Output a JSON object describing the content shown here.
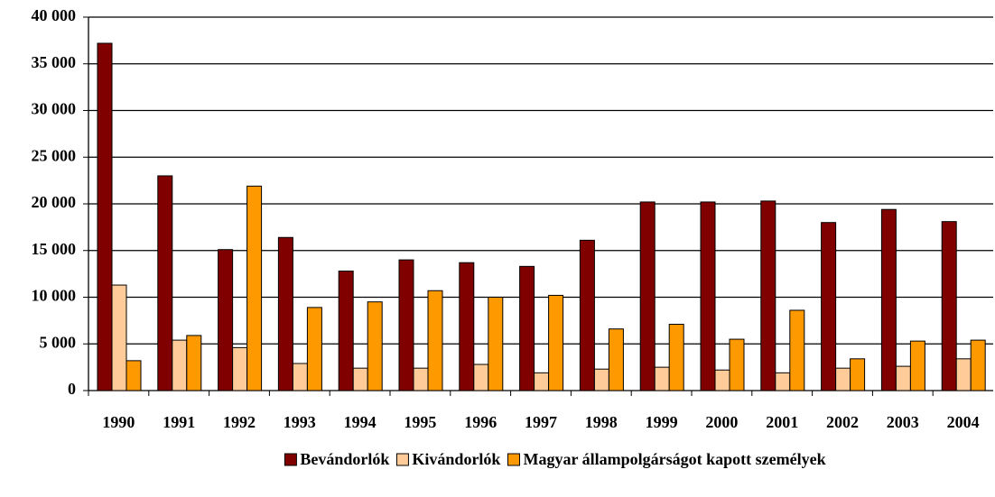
{
  "chart_data": {
    "type": "bar",
    "categories": [
      "1990",
      "1991",
      "1992",
      "1993",
      "1994",
      "1995",
      "1996",
      "1997",
      "1998",
      "1999",
      "2000",
      "2001",
      "2002",
      "2003",
      "2004"
    ],
    "series": [
      {
        "name": "Bevándorlók",
        "color": "#800000",
        "values": [
          37200,
          23000,
          15100,
          16400,
          12800,
          14000,
          13700,
          13300,
          16100,
          20200,
          20200,
          20300,
          18000,
          19400,
          18100
        ]
      },
      {
        "name": "Kivándorlók",
        "color": "#ffcc99",
        "values": [
          11300,
          5400,
          4600,
          2900,
          2400,
          2400,
          2800,
          1900,
          2300,
          2500,
          2200,
          1900,
          2400,
          2600,
          3400
        ]
      },
      {
        "name": "Magyar állampolgárságot kapott személyek",
        "color": "#ff9900",
        "values": [
          3200,
          5900,
          21900,
          8900,
          9500,
          10700,
          10000,
          10200,
          6600,
          7100,
          5500,
          8600,
          3400,
          5300,
          5400
        ]
      }
    ],
    "ylim": [
      0,
      40000
    ],
    "yticks": [
      0,
      {
        "value": 5000,
        "label": "5 000"
      },
      {
        "value": 10000,
        "label": "10 000"
      },
      {
        "value": 15000,
        "label": "15 000"
      },
      {
        "value": 20000,
        "label": "20 000"
      },
      {
        "value": 25000,
        "label": "25 000"
      },
      {
        "value": 30000,
        "label": "30 000"
      },
      {
        "value": 35000,
        "label": "35 000"
      },
      {
        "value": 40000,
        "label": "40 000"
      }
    ],
    "grid": true,
    "legend": "bottom"
  }
}
